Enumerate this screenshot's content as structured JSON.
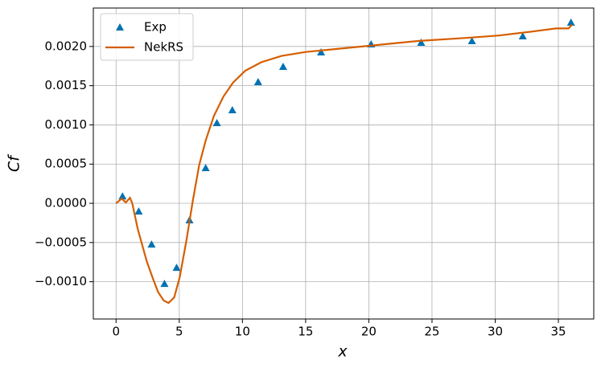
{
  "chart_data": {
    "type": "line",
    "xlabel": "x",
    "ylabel": "Cf",
    "xlim": [
      -1.8,
      37.8
    ],
    "ylim": [
      -0.001475,
      0.00249
    ],
    "xticks": [
      0,
      5,
      10,
      15,
      20,
      25,
      30,
      35
    ],
    "yticks": [
      {
        "value": -0.001,
        "label": "−0.0010"
      },
      {
        "value": -0.0005,
        "label": "−0.0005"
      },
      {
        "value": 0,
        "label": "0.0000"
      },
      {
        "value": 0.0005,
        "label": "0.0005"
      },
      {
        "value": 0.001,
        "label": "0.0010"
      },
      {
        "value": 0.0015,
        "label": "0.0015"
      },
      {
        "value": 0.002,
        "label": "0.0020"
      }
    ],
    "grid": true,
    "legend": "upper left",
    "series": [
      {
        "name": "Exp",
        "type": "scatter",
        "color": "#0072b2",
        "x": [
          0.51,
          1.79,
          2.81,
          3.83,
          4.79,
          5.81,
          7.09,
          7.98,
          9.2,
          11.24,
          13.22,
          16.22,
          20.18,
          24.14,
          28.16,
          32.18,
          36.0
        ],
        "values": [
          9e-05,
          -0.000102,
          -0.000523,
          -0.001025,
          -0.00082,
          -0.000215,
          0.000451,
          0.001025,
          0.001189,
          0.001547,
          0.001742,
          0.001926,
          0.002029,
          0.00205,
          0.00207,
          0.002131,
          0.002305
        ]
      },
      {
        "name": "NekRS",
        "type": "line",
        "color": "#d55e00",
        "x": [
          0,
          0.45,
          0.77,
          1.1,
          1.28,
          1.72,
          2.43,
          2.87,
          3.32,
          3.77,
          4.15,
          4.6,
          5.04,
          5.56,
          6.07,
          6.58,
          7.09,
          7.73,
          8.49,
          9.26,
          10.22,
          11.5,
          13.1,
          15.0,
          17.56,
          20.1,
          23.9,
          27.8,
          30.3,
          32.9,
          34.8,
          35.8,
          36.1
        ],
        "values": [
          0,
          6e-05,
          1e-05,
          7e-05,
          0,
          -0.00033,
          -0.00074,
          -0.00094,
          -0.00113,
          -0.00124,
          -0.00127,
          -0.0012,
          -0.00094,
          -0.00048,
          3e-05,
          0.00049,
          0.0008,
          0.00111,
          0.00136,
          0.00154,
          0.00169,
          0.0018,
          0.00188,
          0.00193,
          0.00197,
          0.00201,
          0.00207,
          0.00211,
          0.00214,
          0.00219,
          0.00223,
          0.00223,
          0.00228
        ]
      }
    ]
  }
}
